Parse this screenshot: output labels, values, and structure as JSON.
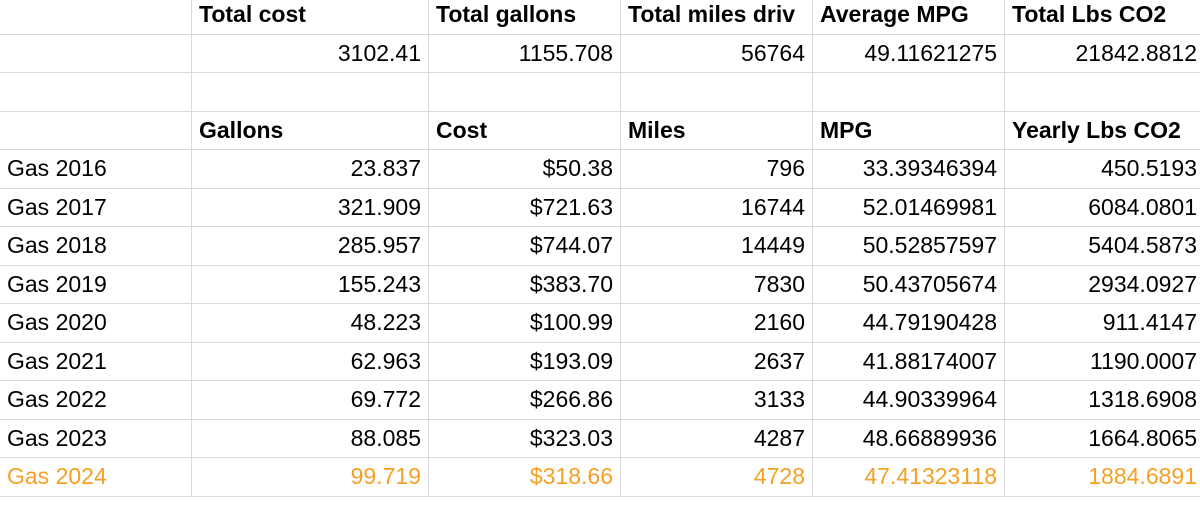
{
  "summary": {
    "headers": [
      "Total cost",
      "Total gallons",
      "Total miles driv",
      "Average MPG",
      "Total Lbs CO2"
    ],
    "values": [
      "3102.41",
      "1155.708",
      "56764",
      "49.11621275",
      "21842.8812"
    ]
  },
  "table": {
    "headers": [
      "Gallons",
      "Cost",
      "Miles",
      "MPG",
      "Yearly Lbs CO2"
    ],
    "rows": [
      {
        "label": "Gas 2016",
        "gallons": "23.837",
        "cost": "$50.38",
        "miles": "796",
        "mpg": "33.39346394",
        "co2": "450.5193"
      },
      {
        "label": "Gas 2017",
        "gallons": "321.909",
        "cost": "$721.63",
        "miles": "16744",
        "mpg": "52.01469981",
        "co2": "6084.0801"
      },
      {
        "label": "Gas 2018",
        "gallons": "285.957",
        "cost": "$744.07",
        "miles": "14449",
        "mpg": "50.52857597",
        "co2": "5404.5873"
      },
      {
        "label": "Gas 2019",
        "gallons": "155.243",
        "cost": "$383.70",
        "miles": "7830",
        "mpg": "50.43705674",
        "co2": "2934.0927"
      },
      {
        "label": "Gas 2020",
        "gallons": "48.223",
        "cost": "$100.99",
        "miles": "2160",
        "mpg": "44.79190428",
        "co2": "911.4147"
      },
      {
        "label": "Gas 2021",
        "gallons": "62.963",
        "cost": "$193.09",
        "miles": "2637",
        "mpg": "41.88174007",
        "co2": "1190.0007"
      },
      {
        "label": "Gas 2022",
        "gallons": "69.772",
        "cost": "$266.86",
        "miles": "3133",
        "mpg": "44.90339964",
        "co2": "1318.6908"
      },
      {
        "label": "Gas 2023",
        "gallons": "88.085",
        "cost": "$323.03",
        "miles": "4287",
        "mpg": "48.66889936",
        "co2": "1664.8065"
      },
      {
        "label": "Gas 2024",
        "gallons": "99.719",
        "cost": "$318.66",
        "miles": "4728",
        "mpg": "47.41323118",
        "co2": "1884.6891"
      }
    ]
  },
  "colors": {
    "highlight_row": "#f6a023",
    "gridline": "#d9d9d9"
  }
}
